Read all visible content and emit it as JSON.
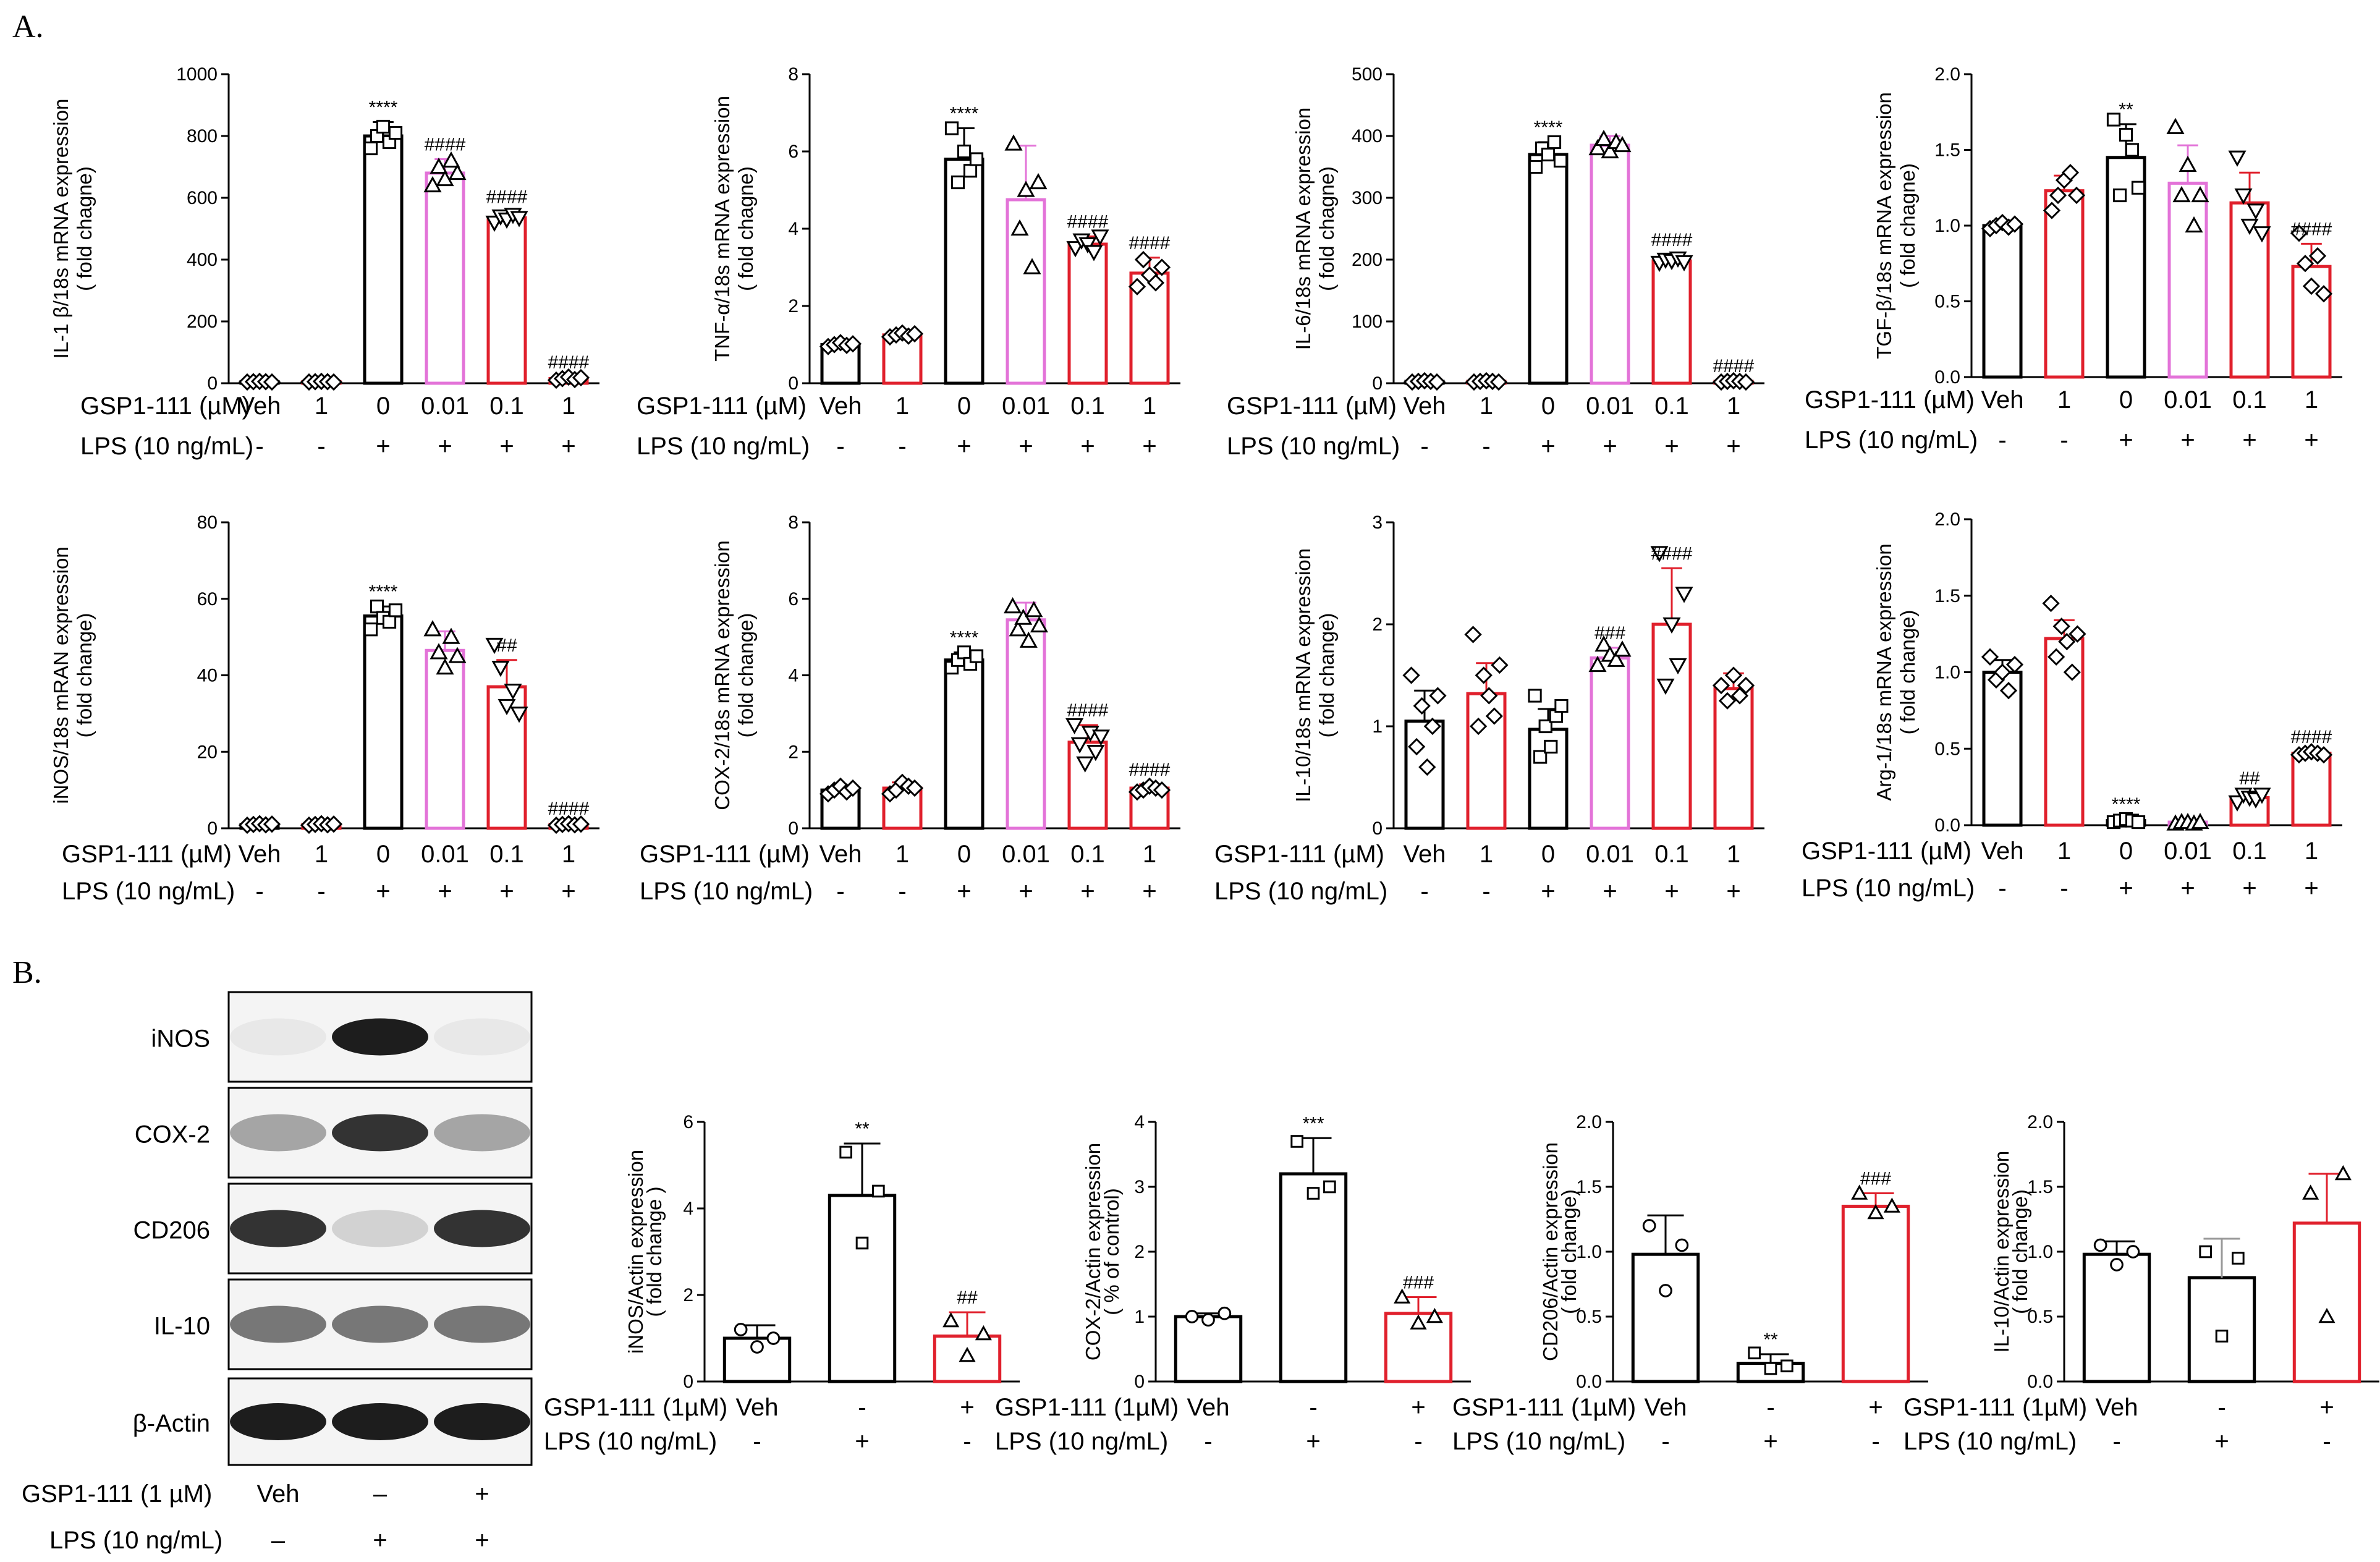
{
  "panels": {
    "a": "A.",
    "b": "B."
  },
  "colors": {
    "black": "#000000",
    "pink": "#e373d8",
    "red": "#e0202c",
    "grey": "#999999"
  },
  "row_labels": {
    "gsp": "GSP1-111 (µM)",
    "lps": "LPS (10 ng/mL)",
    "gsp_b": "GSP1-111 (1µM)",
    "gsp_blot": "GSP1-111 (1 µM)"
  },
  "conditions6": {
    "gsp": [
      "Veh",
      "1",
      "0",
      "0.01",
      "0.1",
      "1"
    ],
    "lps": [
      "-",
      "-",
      "+",
      "+",
      "+",
      "+"
    ]
  },
  "conditions3": {
    "gsp": [
      "Veh",
      "-",
      "+"
    ],
    "lps": [
      "-",
      "+",
      "-"
    ]
  },
  "blot": {
    "bands": [
      "iNOS",
      "COX-2",
      "CD206",
      "IL-10",
      "β-Actin"
    ],
    "gsp": [
      "Veh",
      "–",
      "+"
    ],
    "lps": [
      "–",
      "+",
      "+"
    ]
  },
  "chart_data": [
    {
      "id": "il1b",
      "type": "bar",
      "ylabel": [
        "IL-1 β/18s mRNA expression",
        "( fold chagne)"
      ],
      "ylim": [
        0,
        1000
      ],
      "yticks": [
        0,
        200,
        400,
        600,
        800,
        1000
      ],
      "tickdec": 0,
      "values": [
        5,
        5,
        800,
        680,
        535,
        15
      ],
      "errors": [
        2,
        2,
        45,
        45,
        20,
        5
      ],
      "points": [
        [
          4,
          5,
          6,
          5,
          4
        ],
        [
          4,
          5,
          6,
          5,
          4
        ],
        [
          760,
          800,
          830,
          780,
          810
        ],
        [
          640,
          700,
          660,
          720,
          680
        ],
        [
          520,
          540,
          530,
          545,
          535
        ],
        [
          10,
          15,
          20,
          12,
          18
        ]
      ],
      "stars": [
        "",
        "",
        "****",
        "####",
        "####",
        "####"
      ],
      "colors": [
        "black",
        "red",
        "black",
        "pink",
        "red",
        "red"
      ]
    },
    {
      "id": "tnfa",
      "type": "bar",
      "ylabel": [
        "TNF-α/18s mRNA expression",
        "( fold chagne)"
      ],
      "ylim": [
        0,
        8
      ],
      "yticks": [
        0,
        2,
        4,
        6,
        8
      ],
      "tickdec": 0,
      "values": [
        1.0,
        1.25,
        5.8,
        4.75,
        3.6,
        2.85
      ],
      "errors": [
        0.1,
        0.1,
        0.8,
        1.4,
        0.2,
        0.4
      ],
      "points": [
        [
          0.95,
          1.0,
          1.05,
          0.98,
          1.02
        ],
        [
          1.2,
          1.25,
          1.3,
          1.22,
          1.28
        ],
        [
          6.6,
          5.2,
          6.0,
          5.5,
          5.8
        ],
        [
          6.2,
          4.0,
          5.0,
          3.0,
          5.2
        ],
        [
          3.5,
          3.7,
          3.6,
          3.4,
          3.8
        ],
        [
          2.5,
          3.2,
          2.8,
          2.6,
          3.0
        ]
      ],
      "stars": [
        "",
        "",
        "****",
        "",
        "####",
        "####"
      ],
      "colors": [
        "black",
        "red",
        "black",
        "pink",
        "red",
        "red"
      ]
    },
    {
      "id": "il6",
      "type": "bar",
      "ylabel": [
        "IL-6/18s mRNA expression",
        "( fold chagne)"
      ],
      "ylim": [
        0,
        500
      ],
      "yticks": [
        0,
        100,
        200,
        300,
        400,
        500
      ],
      "tickdec": 0,
      "values": [
        3,
        3,
        370,
        385,
        198,
        3
      ],
      "errors": [
        1,
        1,
        20,
        15,
        10,
        1
      ],
      "points": [
        [
          2,
          3,
          4,
          3,
          2
        ],
        [
          2,
          3,
          4,
          3,
          2
        ],
        [
          350,
          380,
          370,
          390,
          360
        ],
        [
          380,
          395,
          375,
          390,
          385
        ],
        [
          195,
          200,
          198,
          202,
          196
        ],
        [
          2,
          3,
          4,
          3,
          2
        ]
      ],
      "stars": [
        "",
        "",
        "****",
        "",
        "####",
        "####"
      ],
      "colors": [
        "black",
        "red",
        "black",
        "pink",
        "red",
        "red"
      ]
    },
    {
      "id": "tgfb",
      "type": "bar",
      "ylabel": [
        "TGF-β/18s mRNA expression",
        "( fold chagne)"
      ],
      "ylim": [
        0,
        2.0
      ],
      "yticks": [
        0.0,
        0.5,
        1.0,
        1.5,
        2.0
      ],
      "tickdec": 1,
      "values": [
        1.0,
        1.23,
        1.45,
        1.28,
        1.15,
        0.73
      ],
      "errors": [
        0.03,
        0.1,
        0.22,
        0.25,
        0.2,
        0.15
      ],
      "points": [
        [
          0.98,
          1.0,
          1.02,
          0.99,
          1.01
        ],
        [
          1.1,
          1.2,
          1.3,
          1.35,
          1.2
        ],
        [
          1.7,
          1.2,
          1.6,
          1.5,
          1.25
        ],
        [
          1.65,
          1.2,
          1.4,
          1.0,
          1.2
        ],
        [
          1.45,
          1.2,
          1.0,
          1.1,
          0.95
        ],
        [
          0.95,
          0.75,
          0.6,
          0.8,
          0.55
        ]
      ],
      "stars": [
        "",
        "",
        "**",
        "",
        "",
        "####"
      ],
      "colors": [
        "black",
        "red",
        "black",
        "pink",
        "red",
        "red"
      ]
    },
    {
      "id": "inos",
      "type": "bar",
      "ylabel": [
        "iNOS/18s mRAN expression",
        "( fold change)"
      ],
      "ylim": [
        0,
        80
      ],
      "yticks": [
        0,
        20,
        40,
        60,
        80
      ],
      "tickdec": 0,
      "values": [
        1,
        1,
        55.5,
        46.5,
        37,
        1
      ],
      "errors": [
        0.3,
        0.3,
        2.5,
        5,
        7,
        0.3
      ],
      "points": [
        [
          0.8,
          1,
          1.2,
          0.9,
          1.1
        ],
        [
          0.8,
          1,
          1.2,
          0.9,
          1.1
        ],
        [
          52,
          58,
          55,
          54,
          57
        ],
        [
          52,
          46,
          42,
          50,
          45
        ],
        [
          48,
          42,
          32,
          36,
          30
        ],
        [
          0.8,
          1,
          1.2,
          0.9,
          1.1
        ]
      ],
      "stars": [
        "",
        "",
        "****",
        "",
        "##",
        "####"
      ],
      "colors": [
        "black",
        "red",
        "black",
        "pink",
        "red",
        "red"
      ]
    },
    {
      "id": "cox2",
      "type": "bar",
      "ylabel": [
        "COX-2/18s mRNA expression",
        "( fold change)"
      ],
      "ylim": [
        0,
        8
      ],
      "yticks": [
        0,
        2,
        4,
        6,
        8
      ],
      "tickdec": 0,
      "values": [
        1.0,
        1.05,
        4.4,
        5.45,
        2.25,
        1.05
      ],
      "errors": [
        0.1,
        0.15,
        0.2,
        0.45,
        0.45,
        0.1
      ],
      "points": [
        [
          0.9,
          1.0,
          1.1,
          0.95,
          1.05
        ],
        [
          0.9,
          1.0,
          1.2,
          1.1,
          1.05
        ],
        [
          4.2,
          4.4,
          4.6,
          4.3,
          4.5
        ],
        [
          5.8,
          5.2,
          5.5,
          4.9,
          5.7,
          5.3
        ],
        [
          2.7,
          2.2,
          1.7,
          2.5,
          2.0,
          2.4
        ],
        [
          0.95,
          1.0,
          1.1,
          1.05,
          1.0
        ]
      ],
      "stars": [
        "",
        "",
        "****",
        "",
        "####",
        "####"
      ],
      "colors": [
        "black",
        "red",
        "black",
        "pink",
        "red",
        "red"
      ]
    },
    {
      "id": "il10",
      "type": "bar",
      "ylabel": [
        "IL-10/18s mRNA expression",
        "( fold change)"
      ],
      "ylim": [
        0,
        3
      ],
      "yticks": [
        0,
        1,
        2,
        3
      ],
      "tickdec": 0,
      "values": [
        1.05,
        1.32,
        0.97,
        1.67,
        2.0,
        1.37
      ],
      "errors": [
        0.3,
        0.3,
        0.2,
        0.1,
        0.55,
        0.15
      ],
      "points": [
        [
          1.5,
          0.8,
          1.2,
          0.6,
          1.0,
          1.3
        ],
        [
          1.9,
          1.0,
          1.5,
          1.3,
          1.1,
          1.6
        ],
        [
          1.3,
          0.7,
          1.0,
          0.8,
          1.1,
          1.2
        ],
        [
          1.6,
          1.8,
          1.7,
          1.65,
          1.75
        ],
        [
          2.7,
          1.4,
          2.0,
          1.6,
          2.3
        ],
        [
          1.4,
          1.25,
          1.5,
          1.3,
          1.4
        ]
      ],
      "stars": [
        "",
        "",
        "",
        "###",
        "####",
        ""
      ],
      "colors": [
        "black",
        "red",
        "black",
        "pink",
        "red",
        "red"
      ]
    },
    {
      "id": "arg1",
      "type": "bar",
      "ylabel": [
        "Arg-1/18s mRNA expression",
        "( fold change)"
      ],
      "ylim": [
        0,
        2.0
      ],
      "yticks": [
        0.0,
        0.5,
        1.0,
        1.5,
        2.0
      ],
      "tickdec": 1,
      "values": [
        1.0,
        1.22,
        0.03,
        0.02,
        0.18,
        0.47
      ],
      "errors": [
        0.08,
        0.12,
        0.01,
        0.01,
        0.03,
        0.01
      ],
      "points": [
        [
          1.1,
          0.95,
          1.0,
          0.88,
          1.05
        ],
        [
          1.45,
          1.1,
          1.3,
          1.2,
          1.0,
          1.25
        ],
        [
          0.02,
          0.03,
          0.04,
          0.03,
          0.02
        ],
        [
          0.01,
          0.02,
          0.02,
          0.01,
          0.02
        ],
        [
          0.15,
          0.2,
          0.18,
          0.17,
          0.2
        ],
        [
          0.46,
          0.47,
          0.48,
          0.47,
          0.46
        ]
      ],
      "stars": [
        "",
        "",
        "****",
        "",
        "##",
        "####"
      ],
      "colors": [
        "black",
        "red",
        "black",
        "pink",
        "red",
        "red"
      ]
    },
    {
      "id": "inos_b",
      "type": "bar",
      "ylabel": [
        "iNOS/Actin expression",
        "( fold change )"
      ],
      "ylim": [
        0,
        6
      ],
      "yticks": [
        0,
        2,
        4,
        6
      ],
      "tickdec": 0,
      "values": [
        1.0,
        4.3,
        1.05
      ],
      "errors": [
        0.3,
        1.2,
        0.55
      ],
      "points": [
        [
          1.2,
          0.8,
          1.0
        ],
        [
          5.3,
          3.2,
          4.4
        ],
        [
          1.4,
          0.6,
          1.1
        ]
      ],
      "stars": [
        "",
        "**",
        "##"
      ],
      "colors": [
        "black",
        "black",
        "red"
      ]
    },
    {
      "id": "cox2_b",
      "type": "bar",
      "ylabel": [
        "COX-2/Actin expression",
        "( % of control)"
      ],
      "ylim": [
        0,
        4
      ],
      "yticks": [
        0,
        1,
        2,
        3,
        4
      ],
      "tickdec": 0,
      "values": [
        1.0,
        3.2,
        1.05
      ],
      "errors": [
        0.05,
        0.55,
        0.25
      ],
      "points": [
        [
          1.0,
          0.95,
          1.05
        ],
        [
          3.7,
          2.9,
          3.0
        ],
        [
          1.3,
          0.9,
          1.0
        ]
      ],
      "stars": [
        "",
        "***",
        "###"
      ],
      "colors": [
        "black",
        "black",
        "red"
      ]
    },
    {
      "id": "cd206_b",
      "type": "bar",
      "ylabel": [
        "CD206/Actin expression",
        "( fold change)"
      ],
      "ylim": [
        0,
        2.0
      ],
      "yticks": [
        0.0,
        0.5,
        1.0,
        1.5,
        2.0
      ],
      "tickdec": 1,
      "values": [
        0.98,
        0.14,
        1.35
      ],
      "errors": [
        0.3,
        0.07,
        0.1
      ],
      "points": [
        [
          1.2,
          0.7,
          1.05
        ],
        [
          0.22,
          0.1,
          0.12
        ],
        [
          1.45,
          1.3,
          1.35
        ]
      ],
      "stars": [
        "",
        "**",
        "###"
      ],
      "colors": [
        "black",
        "black",
        "red"
      ]
    },
    {
      "id": "il10_b",
      "type": "bar",
      "ylabel": [
        "IL-10/Actin expression",
        "( fold change)"
      ],
      "ylim": [
        0,
        2.0
      ],
      "yticks": [
        0.0,
        0.5,
        1.0,
        1.5,
        2.0
      ],
      "tickdec": 1,
      "values": [
        0.98,
        0.8,
        1.22
      ],
      "errors": [
        0.1,
        0.3,
        0.38
      ],
      "points": [
        [
          1.05,
          0.9,
          1.0
        ],
        [
          1.0,
          0.35,
          0.95
        ],
        [
          1.45,
          0.5,
          1.6
        ]
      ],
      "stars": [
        "",
        "",
        ""
      ],
      "colors": [
        "black",
        "black",
        "red"
      ]
    }
  ]
}
